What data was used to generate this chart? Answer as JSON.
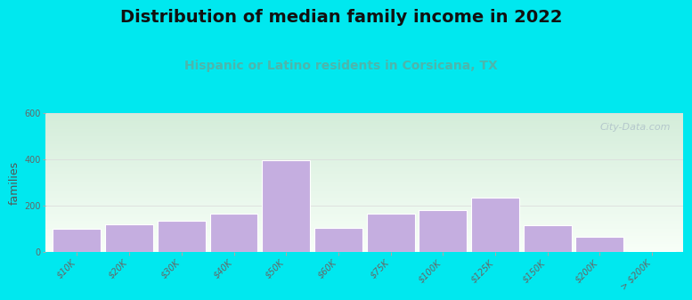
{
  "title": "Distribution of median family income in 2022",
  "subtitle": "Hispanic or Latino residents in Corsicana, TX",
  "ylabel": "families",
  "categories": [
    "$10K",
    "$20K",
    "$30K",
    "$40K",
    "$50K",
    "$60K",
    "$75K",
    "$100K",
    "$125K",
    "$150K",
    "$200K",
    "> $200K"
  ],
  "values": [
    100,
    120,
    135,
    165,
    395,
    105,
    165,
    180,
    235,
    115,
    65,
    5
  ],
  "bar_color": "#c5aee0",
  "bar_edgecolor": "#ffffff",
  "background_outer": "#00e8ef",
  "grad_top_left": "#d4edda",
  "grad_bottom_right": "#f8fff8",
  "ylim": [
    0,
    600
  ],
  "yticks": [
    0,
    200,
    400,
    600
  ],
  "title_fontsize": 14,
  "subtitle_fontsize": 10,
  "subtitle_color": "#4db6ac",
  "ylabel_fontsize": 9,
  "tick_label_fontsize": 7,
  "watermark_text": "City-Data.com",
  "watermark_color": "#aec0c8",
  "grid_color": "#dddddd"
}
